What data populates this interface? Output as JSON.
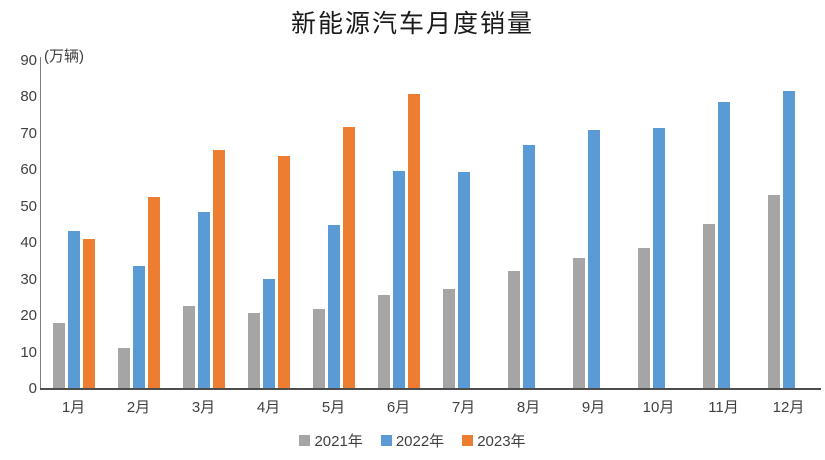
{
  "chart_data": {
    "type": "bar",
    "title": "新能源汽车月度销量",
    "unit_label": "(万辆)",
    "categories": [
      "1月",
      "2月",
      "3月",
      "4月",
      "5月",
      "6月",
      "7月",
      "8月",
      "9月",
      "10月",
      "11月",
      "12月"
    ],
    "series": [
      {
        "name": "2021年",
        "color": "#A5A5A5",
        "values": [
          17.9,
          11.0,
          22.6,
          20.6,
          21.7,
          25.6,
          27.1,
          32.1,
          35.7,
          38.3,
          45.0,
          53.1
        ]
      },
      {
        "name": "2022年",
        "color": "#5B9BD5",
        "values": [
          43.1,
          33.4,
          48.4,
          29.9,
          44.7,
          59.6,
          59.3,
          66.6,
          70.8,
          71.4,
          78.6,
          81.4
        ]
      },
      {
        "name": "2023年",
        "color": "#ED7D31",
        "values": [
          40.8,
          52.5,
          65.3,
          63.6,
          71.7,
          80.6,
          null,
          null,
          null,
          null,
          null,
          null
        ]
      }
    ],
    "ylim": [
      0,
      90
    ],
    "ytick_step": 10,
    "grid": false,
    "legend_position": "bottom",
    "text_color": "#404040",
    "axis_line_color": "#4d4d4d"
  }
}
